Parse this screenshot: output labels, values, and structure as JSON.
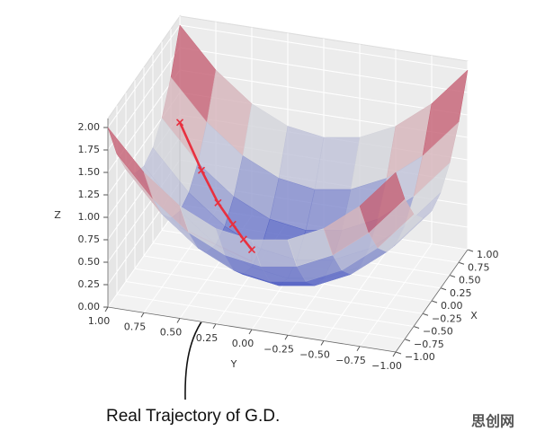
{
  "chart_data": {
    "type": "surface3d",
    "xlabel": "X",
    "ylabel": "Y",
    "zlabel": "Z",
    "xlim": [
      -1,
      1
    ],
    "ylim": [
      -1,
      1
    ],
    "zlim": [
      0,
      2.1
    ],
    "xticks": [
      {
        "value": -1,
        "label": "−1.00"
      },
      {
        "value": -0.75,
        "label": "−0.75"
      },
      {
        "value": -0.5,
        "label": "−0.50"
      },
      {
        "value": -0.25,
        "label": "−0.25"
      },
      {
        "value": 0,
        "label": "0.00"
      },
      {
        "value": 0.25,
        "label": "0.25"
      },
      {
        "value": 0.5,
        "label": "0.50"
      },
      {
        "value": 0.75,
        "label": "0.75"
      },
      {
        "value": 1,
        "label": "1.00"
      }
    ],
    "yticks": [
      {
        "value": -1,
        "label": "−1.00"
      },
      {
        "value": -0.75,
        "label": "−0.75"
      },
      {
        "value": -0.5,
        "label": "−0.50"
      },
      {
        "value": -0.25,
        "label": "−0.25"
      },
      {
        "value": 0,
        "label": "0.00"
      },
      {
        "value": 0.25,
        "label": "0.25"
      },
      {
        "value": 0.5,
        "label": "0.50"
      },
      {
        "value": 0.75,
        "label": "0.75"
      },
      {
        "value": 1,
        "label": "1.00"
      }
    ],
    "zticks": [
      {
        "value": 0,
        "label": "0.00"
      },
      {
        "value": 0.25,
        "label": "0.25"
      },
      {
        "value": 0.5,
        "label": "0.50"
      },
      {
        "value": 0.75,
        "label": "0.75"
      },
      {
        "value": 1,
        "label": "1.00"
      },
      {
        "value": 1.25,
        "label": "1.25"
      },
      {
        "value": 1.5,
        "label": "1.50"
      },
      {
        "value": 1.75,
        "label": "1.75"
      },
      {
        "value": 2,
        "label": "2.00"
      }
    ],
    "grid": true,
    "cmap": [
      "#3b4cc0",
      "#dddddd",
      "#b40426"
    ],
    "surface": {
      "x": [
        -1,
        -0.75,
        -0.5,
        -0.25,
        0,
        0.25,
        0.5,
        0.75,
        1
      ],
      "y": [
        -1,
        -0.75,
        -0.5,
        -0.25,
        0,
        0.25,
        0.5,
        0.75,
        1
      ],
      "z": [
        [
          2,
          1.5625,
          1.25,
          1.0625,
          1,
          1.0625,
          1.25,
          1.5625,
          2
        ],
        [
          1.5625,
          1.125,
          0.8125,
          0.625,
          0.5625,
          0.625,
          0.8125,
          1.125,
          1.5625
        ],
        [
          1.25,
          0.8125,
          0.5,
          0.3125,
          0.25,
          0.3125,
          0.5,
          0.8125,
          1.25
        ],
        [
          1.0625,
          0.625,
          0.3125,
          0.125,
          0.0625,
          0.125,
          0.3125,
          0.625,
          1.0625
        ],
        [
          1,
          0.5625,
          0.25,
          0.0625,
          0,
          0.0625,
          0.25,
          0.5625,
          1
        ],
        [
          1.0625,
          0.625,
          0.3125,
          0.125,
          0.0625,
          0.125,
          0.3125,
          0.625,
          1.0625
        ],
        [
          1.25,
          0.8125,
          0.5,
          0.3125,
          0.25,
          0.3125,
          0.5,
          0.8125,
          1.25
        ],
        [
          1.5625,
          1.125,
          0.8125,
          0.625,
          0.5625,
          0.625,
          0.8125,
          1.125,
          1.5625
        ],
        [
          2,
          1.5625,
          1.25,
          1.0625,
          1,
          1.0625,
          1.25,
          1.5625,
          2
        ]
      ]
    },
    "trajectory": {
      "color": "#e8303f",
      "x": [
        0.6,
        0.48,
        0.38,
        0.31,
        0.25,
        0.2
      ],
      "y": [
        0.9,
        0.72,
        0.58,
        0.46,
        0.37,
        0.3
      ],
      "z": [
        1.17,
        0.75,
        0.48,
        0.31,
        0.2,
        0.13
      ]
    },
    "annotation": "Real Trajectory of G.D.",
    "watermark": "思创网"
  }
}
